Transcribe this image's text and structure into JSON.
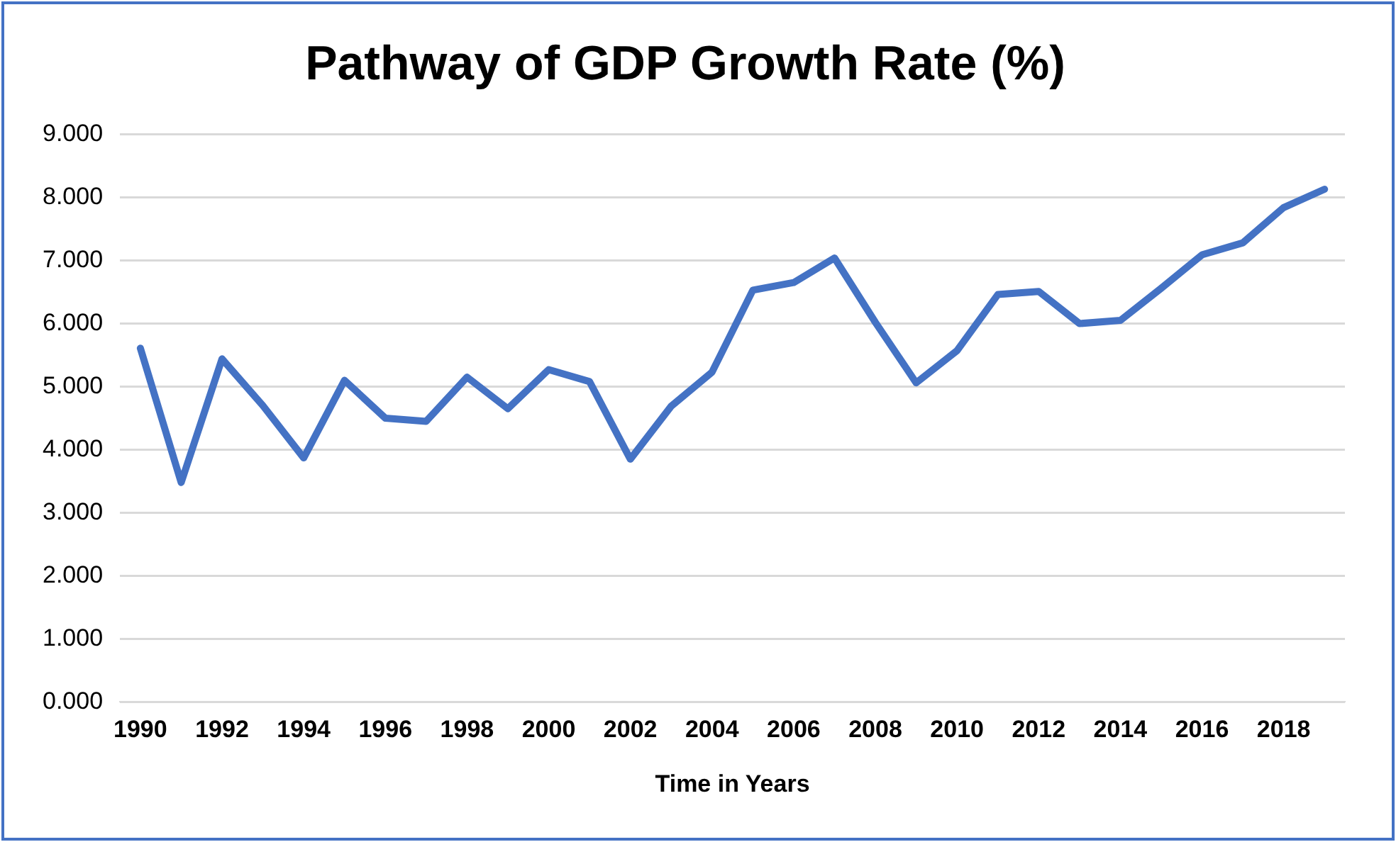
{
  "chart_data": {
    "type": "line",
    "title": "Pathway of GDP Growth Rate (%)",
    "xlabel": "Time in Years",
    "categories": [
      "1990",
      null,
      "1992",
      null,
      "1994",
      null,
      "1996",
      null,
      "1998",
      null,
      "2000",
      null,
      "2002",
      null,
      "2004",
      null,
      "2006",
      null,
      "2008",
      null,
      "2010",
      null,
      "2012",
      null,
      "2014",
      null,
      "2016",
      null,
      "2018",
      null
    ],
    "series": [
      {
        "color": "#4472c4",
        "values": [
          5.61,
          3.48,
          5.44,
          4.7,
          3.87,
          5.1,
          4.5,
          4.45,
          5.15,
          4.65,
          5.27,
          5.08,
          3.85,
          4.69,
          5.23,
          6.53,
          6.65,
          7.04,
          6.02,
          5.06,
          5.57,
          6.46,
          6.51,
          6.0,
          6.05,
          6.56,
          7.09,
          7.28,
          7.84,
          8.13
        ]
      }
    ],
    "ylim": [
      0,
      9
    ],
    "yticks": [
      {
        "value": 0,
        "label": "0.000"
      },
      {
        "value": 1,
        "label": "1.000"
      },
      {
        "value": 2,
        "label": "2.000"
      },
      {
        "value": 3,
        "label": "3.000"
      },
      {
        "value": 4,
        "label": "4.000"
      },
      {
        "value": 5,
        "label": "5.000"
      },
      {
        "value": 6,
        "label": "6.000"
      },
      {
        "value": 7,
        "label": "7.000"
      },
      {
        "value": 8,
        "label": "8.000"
      },
      {
        "value": 9,
        "label": "9.000"
      }
    ],
    "grid": "y",
    "legend": false,
    "marker": "none",
    "line_style": "solid"
  }
}
